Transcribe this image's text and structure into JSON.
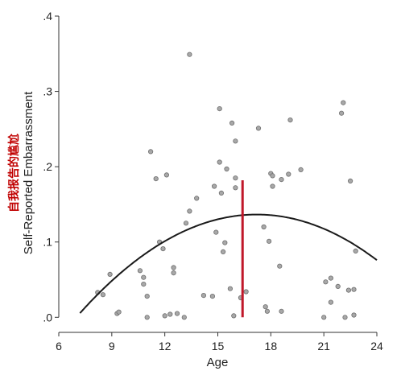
{
  "chart_data": {
    "type": "scatter",
    "title": "",
    "xlabel": "Age",
    "ylabel": "Self-Reported Embarrassment",
    "ylabel_annotation": "自我报告的尴尬",
    "xlim": [
      6,
      24
    ],
    "ylim": [
      -0.02,
      0.4
    ],
    "x_ticks": [
      6,
      9,
      12,
      15,
      18,
      21,
      24
    ],
    "y_ticks": [
      0.0,
      0.1,
      0.2,
      0.3,
      0.4
    ],
    "x_tick_labels": [
      "6",
      "9",
      "12",
      "15",
      "18",
      "21",
      "24"
    ],
    "y_tick_labels": [
      ".0",
      ".1",
      ".2",
      ".3",
      ".4"
    ],
    "grid": false,
    "legend": "none",
    "colors": {
      "points": "#a8a8a8",
      "points_edge": "#6e6e6e",
      "curve": "#1a1a1a",
      "marker": "#c0182a",
      "axis": "#333333",
      "annotation": "#c00000"
    },
    "points": [
      {
        "x": 8.2,
        "y": 0.033
      },
      {
        "x": 8.5,
        "y": 0.03
      },
      {
        "x": 8.9,
        "y": 0.057
      },
      {
        "x": 9.3,
        "y": 0.005
      },
      {
        "x": 9.4,
        "y": 0.007
      },
      {
        "x": 10.6,
        "y": 0.062
      },
      {
        "x": 10.8,
        "y": 0.044
      },
      {
        "x": 10.8,
        "y": 0.053
      },
      {
        "x": 11.0,
        "y": 0.0
      },
      {
        "x": 11.0,
        "y": 0.028
      },
      {
        "x": 11.2,
        "y": 0.22
      },
      {
        "x": 11.5,
        "y": 0.184
      },
      {
        "x": 11.7,
        "y": 0.1
      },
      {
        "x": 11.9,
        "y": 0.091
      },
      {
        "x": 12.1,
        "y": 0.189
      },
      {
        "x": 12.0,
        "y": 0.002
      },
      {
        "x": 12.3,
        "y": 0.004
      },
      {
        "x": 12.5,
        "y": 0.066
      },
      {
        "x": 12.5,
        "y": 0.059
      },
      {
        "x": 12.7,
        "y": 0.005
      },
      {
        "x": 13.1,
        "y": 0.0
      },
      {
        "x": 13.2,
        "y": 0.125
      },
      {
        "x": 13.4,
        "y": 0.141
      },
      {
        "x": 13.4,
        "y": 0.349
      },
      {
        "x": 13.8,
        "y": 0.158
      },
      {
        "x": 14.2,
        "y": 0.029
      },
      {
        "x": 14.7,
        "y": 0.028
      },
      {
        "x": 14.8,
        "y": 0.174
      },
      {
        "x": 14.9,
        "y": 0.113
      },
      {
        "x": 15.1,
        "y": 0.206
      },
      {
        "x": 15.1,
        "y": 0.277
      },
      {
        "x": 15.2,
        "y": 0.165
      },
      {
        "x": 15.3,
        "y": 0.087
      },
      {
        "x": 15.4,
        "y": 0.099
      },
      {
        "x": 15.5,
        "y": 0.197
      },
      {
        "x": 15.7,
        "y": 0.038
      },
      {
        "x": 15.8,
        "y": 0.258
      },
      {
        "x": 15.9,
        "y": 0.002
      },
      {
        "x": 16.0,
        "y": 0.172
      },
      {
        "x": 16.0,
        "y": 0.185
      },
      {
        "x": 16.0,
        "y": 0.234
      },
      {
        "x": 16.3,
        "y": 0.026
      },
      {
        "x": 16.6,
        "y": 0.034
      },
      {
        "x": 17.3,
        "y": 0.251
      },
      {
        "x": 17.6,
        "y": 0.12
      },
      {
        "x": 17.7,
        "y": 0.014
      },
      {
        "x": 17.8,
        "y": 0.008
      },
      {
        "x": 17.9,
        "y": 0.101
      },
      {
        "x": 18.0,
        "y": 0.191
      },
      {
        "x": 18.1,
        "y": 0.174
      },
      {
        "x": 18.1,
        "y": 0.188
      },
      {
        "x": 18.5,
        "y": 0.068
      },
      {
        "x": 18.6,
        "y": 0.183
      },
      {
        "x": 18.6,
        "y": 0.008
      },
      {
        "x": 19.0,
        "y": 0.19
      },
      {
        "x": 19.1,
        "y": 0.262
      },
      {
        "x": 19.7,
        "y": 0.196
      },
      {
        "x": 21.0,
        "y": 0.0
      },
      {
        "x": 21.1,
        "y": 0.047
      },
      {
        "x": 21.4,
        "y": 0.052
      },
      {
        "x": 21.4,
        "y": 0.02
      },
      {
        "x": 21.8,
        "y": 0.041
      },
      {
        "x": 22.0,
        "y": 0.271
      },
      {
        "x": 22.1,
        "y": 0.285
      },
      {
        "x": 22.2,
        "y": 0.0
      },
      {
        "x": 22.4,
        "y": 0.036
      },
      {
        "x": 22.5,
        "y": 0.181
      },
      {
        "x": 22.7,
        "y": 0.037
      },
      {
        "x": 22.7,
        "y": 0.003
      },
      {
        "x": 22.8,
        "y": 0.088
      }
    ],
    "quadratic_fit": {
      "peak_x": 17.2,
      "peak_y": 0.1365,
      "curvature": -0.00131,
      "x_range": [
        7.2,
        24
      ]
    },
    "vertical_marker": {
      "x": 16.4,
      "y_from": 0.0,
      "y_to": 0.182
    }
  }
}
